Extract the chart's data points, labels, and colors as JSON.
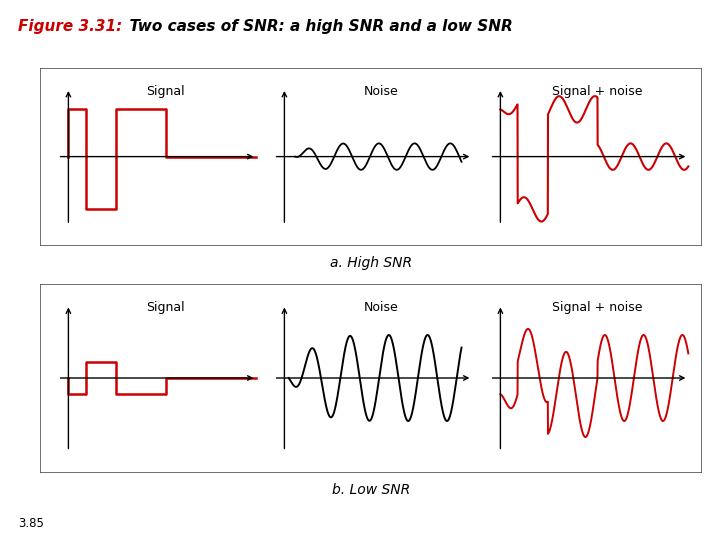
{
  "title_red": "Figure 3.31:",
  "title_black": "  Two cases of SNR: a high SNR and a low SNR",
  "title_fontsize": 11,
  "label_a": "a. High SNR",
  "label_b": "b. Low SNR",
  "signal_label": "Signal",
  "noise_label": "Noise",
  "combined_label": "Signal + noise",
  "signal_color": "#cc0000",
  "noise_color": "#000000",
  "page_label": "3.85",
  "bg_color": "#ffffff",
  "box_edge_color": "#666666"
}
